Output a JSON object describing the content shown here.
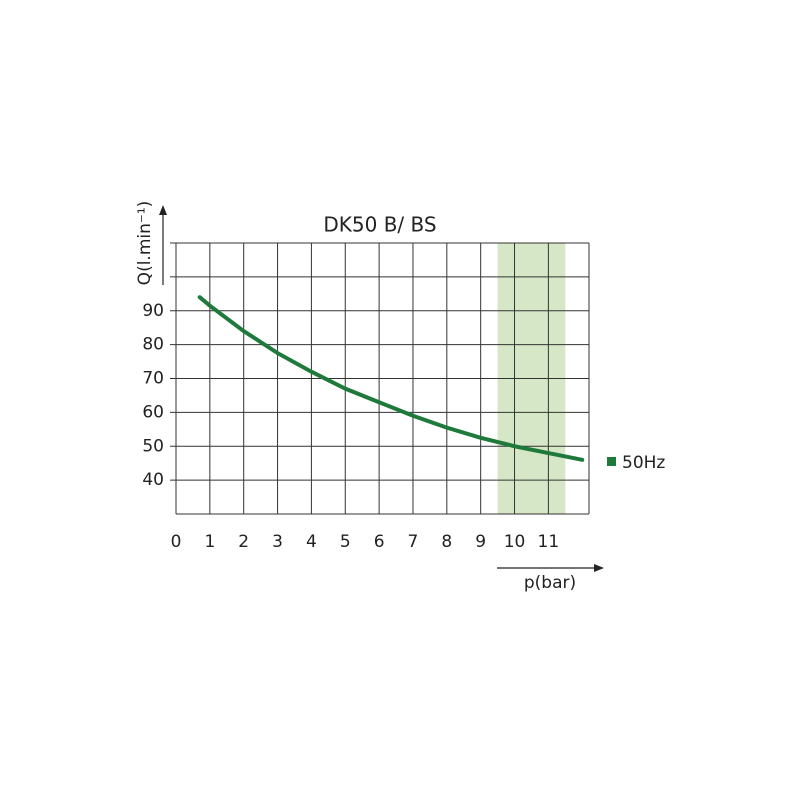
{
  "chart_data": {
    "type": "line",
    "title": "DK50 B/ BS",
    "x_label": "p(bar)",
    "y_label": "Q(l.min⁻¹)",
    "x": [
      0.7,
      1,
      2,
      3,
      4,
      5,
      6,
      7,
      8,
      9,
      10,
      11,
      12
    ],
    "series": [
      {
        "name": "50Hz",
        "color": "#1e7a3a",
        "values": [
          94,
          91.5,
          84,
          77.5,
          72,
          67,
          63,
          59,
          55.5,
          52.5,
          50,
          48,
          46
        ]
      }
    ],
    "xlim": [
      0,
      12.2
    ],
    "ylim": [
      30,
      110
    ],
    "xticks": [
      0,
      1,
      2,
      3,
      4,
      5,
      6,
      7,
      8,
      9,
      10,
      11
    ],
    "yticks": [
      40,
      50,
      60,
      70,
      80,
      90
    ],
    "ygrid": [
      40,
      50,
      60,
      70,
      80,
      90,
      100,
      110
    ],
    "shaded_range": [
      9.5,
      11.5
    ],
    "shade_color": "#d5e7c6",
    "grid": true
  }
}
